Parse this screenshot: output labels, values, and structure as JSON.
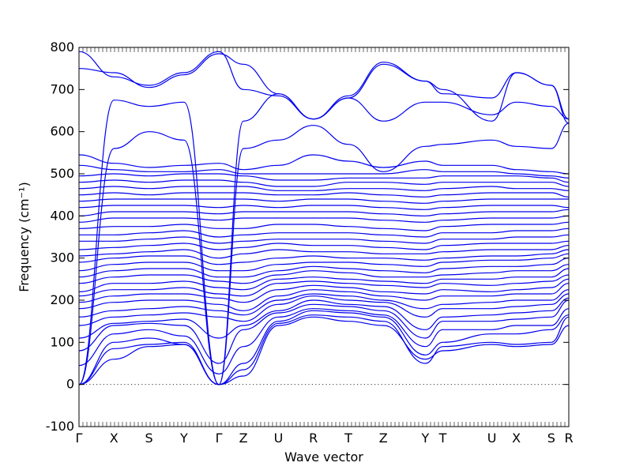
{
  "chart_data": {
    "type": "line",
    "title": "",
    "xlabel": "Wave vector",
    "ylabel": "Frequency (cm⁻¹)",
    "ylim": [
      -100,
      800
    ],
    "y_ticks": [
      -100,
      0,
      100,
      200,
      300,
      400,
      500,
      600,
      700,
      800
    ],
    "x_range": [
      0,
      14
    ],
    "grid": false,
    "legend": "none",
    "color": "#0000ee",
    "high_symmetry_points": [
      {
        "label": "Γ",
        "x": 0
      },
      {
        "label": "X",
        "x": 1
      },
      {
        "label": "S",
        "x": 2
      },
      {
        "label": "Y",
        "x": 3
      },
      {
        "label": "Γ",
        "x": 4
      },
      {
        "label": "Z",
        "x": 4.7
      },
      {
        "label": "U",
        "x": 5.7
      },
      {
        "label": "R",
        "x": 6.7
      },
      {
        "label": "T",
        "x": 7.7
      },
      {
        "label": "Z",
        "x": 8.7
      },
      {
        "label": "Y",
        "x": 9.9
      },
      {
        "label": "T",
        "x": 10.4
      },
      {
        "label": "U",
        "x": 11.8
      },
      {
        "label": "X",
        "x": 12.5
      },
      {
        "label": "S",
        "x": 13.5
      },
      {
        "label": "R",
        "x": 14
      }
    ],
    "series": [
      {
        "values": [
          0,
          60,
          90,
          95,
          0,
          20,
          140,
          160,
          150,
          140,
          60,
          80,
          95,
          90,
          95,
          140
        ]
      },
      {
        "values": [
          0,
          85,
          95,
          100,
          0,
          35,
          145,
          165,
          160,
          150,
          50,
          90,
          100,
          95,
          100,
          160
        ]
      },
      {
        "values": [
          0,
          100,
          110,
          95,
          0,
          50,
          150,
          175,
          170,
          160,
          70,
          100,
          120,
          120,
          130,
          165
        ]
      },
      {
        "values": [
          45,
          120,
          130,
          115,
          25,
          90,
          160,
          180,
          175,
          165,
          90,
          130,
          130,
          140,
          140,
          180
        ]
      },
      {
        "values": [
          80,
          140,
          145,
          140,
          50,
          130,
          170,
          190,
          185,
          175,
          110,
          150,
          150,
          155,
          160,
          200
        ]
      },
      {
        "values": [
          110,
          145,
          150,
          155,
          110,
          140,
          175,
          200,
          190,
          185,
          130,
          160,
          165,
          170,
          175,
          205
        ]
      },
      {
        "values": [
          140,
          160,
          165,
          170,
          160,
          150,
          190,
          210,
          200,
          195,
          160,
          180,
          180,
          185,
          190,
          215
        ]
      },
      {
        "values": [
          160,
          175,
          180,
          185,
          175,
          165,
          200,
          215,
          210,
          200,
          180,
          190,
          195,
          200,
          200,
          225
        ]
      },
      {
        "values": [
          180,
          195,
          200,
          200,
          190,
          175,
          210,
          225,
          220,
          210,
          200,
          210,
          210,
          215,
          215,
          240
        ]
      },
      {
        "values": [
          195,
          210,
          215,
          215,
          205,
          195,
          225,
          235,
          230,
          220,
          215,
          225,
          220,
          225,
          230,
          250
        ]
      },
      {
        "values": [
          210,
          225,
          225,
          230,
          215,
          210,
          240,
          245,
          240,
          235,
          230,
          240,
          235,
          240,
          245,
          260
        ]
      },
      {
        "values": [
          220,
          240,
          240,
          245,
          230,
          225,
          250,
          255,
          250,
          245,
          240,
          250,
          250,
          255,
          255,
          275
        ]
      },
      {
        "values": [
          240,
          255,
          260,
          260,
          245,
          240,
          260,
          270,
          265,
          255,
          255,
          260,
          265,
          270,
          270,
          285
        ]
      },
      {
        "values": [
          255,
          270,
          275,
          275,
          255,
          255,
          270,
          280,
          275,
          270,
          265,
          275,
          280,
          280,
          285,
          300
        ]
      },
      {
        "values": [
          270,
          285,
          290,
          290,
          270,
          270,
          285,
          290,
          290,
          285,
          280,
          290,
          295,
          295,
          300,
          310
        ]
      },
      {
        "values": [
          290,
          300,
          305,
          305,
          285,
          290,
          300,
          305,
          300,
          300,
          295,
          300,
          305,
          305,
          310,
          320
        ]
      },
      {
        "values": [
          305,
          310,
          315,
          320,
          300,
          310,
          320,
          315,
          315,
          310,
          310,
          315,
          320,
          320,
          320,
          330
        ]
      },
      {
        "values": [
          320,
          325,
          330,
          335,
          320,
          325,
          335,
          330,
          330,
          325,
          320,
          330,
          335,
          335,
          335,
          340
        ]
      },
      {
        "values": [
          340,
          340,
          345,
          350,
          335,
          340,
          345,
          345,
          345,
          340,
          335,
          345,
          345,
          350,
          350,
          355
        ]
      },
      {
        "values": [
          355,
          355,
          360,
          365,
          350,
          355,
          360,
          360,
          360,
          355,
          350,
          360,
          360,
          365,
          365,
          370
        ]
      },
      {
        "values": [
          370,
          375,
          375,
          380,
          370,
          370,
          380,
          380,
          375,
          370,
          365,
          375,
          380,
          380,
          380,
          385
        ]
      },
      {
        "values": [
          385,
          395,
          395,
          395,
          390,
          395,
          395,
          395,
          395,
          390,
          385,
          390,
          395,
          395,
          395,
          400
        ]
      },
      {
        "values": [
          400,
          410,
          410,
          410,
          405,
          410,
          410,
          410,
          410,
          405,
          400,
          405,
          410,
          410,
          410,
          415
        ]
      },
      {
        "values": [
          420,
          425,
          425,
          425,
          420,
          425,
          420,
          425,
          425,
          420,
          415,
          420,
          425,
          425,
          425,
          420
        ]
      },
      {
        "values": [
          435,
          440,
          440,
          440,
          440,
          440,
          435,
          440,
          440,
          435,
          430,
          435,
          440,
          440,
          440,
          440
        ]
      },
      {
        "values": [
          450,
          455,
          450,
          455,
          455,
          455,
          450,
          450,
          455,
          450,
          445,
          450,
          455,
          455,
          455,
          445
        ]
      },
      {
        "values": [
          465,
          470,
          465,
          470,
          470,
          470,
          460,
          460,
          465,
          465,
          460,
          465,
          470,
          465,
          465,
          460
        ]
      },
      {
        "values": [
          480,
          485,
          480,
          485,
          485,
          480,
          470,
          470,
          480,
          480,
          475,
          480,
          480,
          480,
          480,
          470
        ]
      },
      {
        "values": [
          495,
          500,
          495,
          500,
          500,
          495,
          485,
          485,
          490,
          490,
          490,
          495,
          495,
          495,
          490,
          480
        ]
      },
      {
        "values": [
          520,
          510,
          505,
          505,
          510,
          500,
          500,
          500,
          500,
          500,
          510,
          505,
          505,
          500,
          495,
          490
        ]
      },
      {
        "values": [
          545,
          525,
          515,
          520,
          525,
          510,
          520,
          545,
          530,
          515,
          530,
          520,
          520,
          510,
          505,
          500
        ]
      },
      {
        "values": [
          0,
          560,
          600,
          580,
          0,
          560,
          580,
          615,
          570,
          505,
          565,
          570,
          580,
          565,
          560,
          620
        ]
      },
      {
        "values": [
          0,
          675,
          660,
          670,
          0,
          625,
          690,
          630,
          680,
          625,
          670,
          670,
          640,
          670,
          660,
          630
        ]
      },
      {
        "values": [
          750,
          740,
          705,
          735,
          785,
          760,
          690,
          630,
          685,
          765,
          720,
          690,
          680,
          740,
          710,
          630
        ]
      },
      {
        "values": [
          790,
          730,
          710,
          740,
          790,
          700,
          685,
          630,
          680,
          760,
          720,
          700,
          625,
          740,
          710,
          620
        ]
      }
    ]
  }
}
